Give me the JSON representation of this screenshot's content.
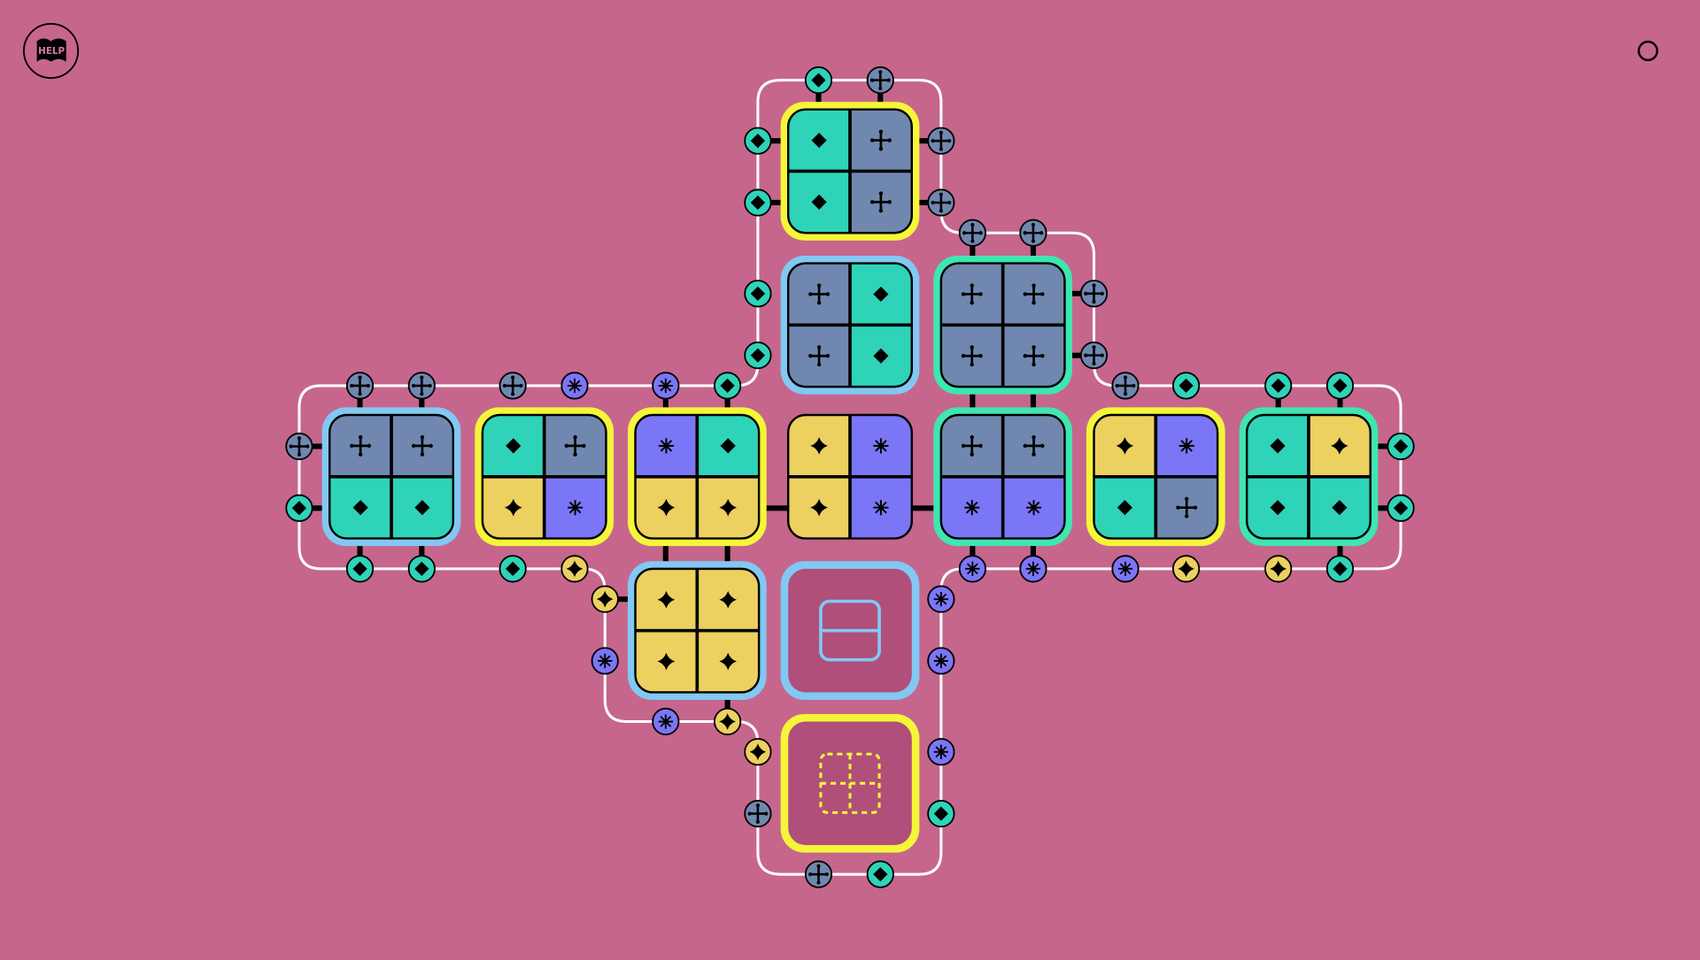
{
  "help_button": {
    "label": "HELP"
  },
  "menu_button": {
    "icon": "circle-icon"
  },
  "colors": {
    "background": "#c6668d",
    "teal": "#2fd3b8",
    "gray": "#7088b0",
    "yellow": "#ecd060",
    "purple": "#7b76f5",
    "ring_yellow": "#f5f53a",
    "ring_blue": "#82c8f2",
    "ring_green": "#3ee6b0",
    "empty_tile": "#b04f7a",
    "path": "#ffffff"
  },
  "symbols": {
    "t": "diamond",
    "g": "cross",
    "p": "asterisk",
    "y": "star"
  },
  "tiles": [
    {
      "row": 0,
      "col": 3,
      "ring": "ring_yellow",
      "cells": [
        "t",
        "g",
        "t",
        "g"
      ]
    },
    {
      "row": 1,
      "col": 3,
      "ring": "ring_blue",
      "cells": [
        "g",
        "t",
        "g",
        "t"
      ]
    },
    {
      "row": 1,
      "col": 4,
      "ring": "ring_green",
      "cells": [
        "g",
        "g",
        "g",
        "g"
      ]
    },
    {
      "row": 2,
      "col": 0,
      "ring": "ring_blue",
      "cells": [
        "g",
        "g",
        "t",
        "t"
      ]
    },
    {
      "row": 2,
      "col": 1,
      "ring": "ring_yellow",
      "cells": [
        "t",
        "g",
        "y",
        "p"
      ]
    },
    {
      "row": 2,
      "col": 2,
      "ring": "ring_yellow",
      "cells": [
        "p",
        "t",
        "y",
        "y"
      ]
    },
    {
      "row": 2,
      "col": 3,
      "ring": null,
      "cells": [
        "y",
        "p",
        "y",
        "p"
      ]
    },
    {
      "row": 2,
      "col": 4,
      "ring": "ring_green",
      "cells": [
        "g",
        "g",
        "p",
        "p"
      ]
    },
    {
      "row": 2,
      "col": 5,
      "ring": "ring_yellow",
      "cells": [
        "y",
        "p",
        "t",
        "g"
      ]
    },
    {
      "row": 2,
      "col": 6,
      "ring": "ring_green",
      "cells": [
        "t",
        "y",
        "t",
        "t"
      ]
    },
    {
      "row": 3,
      "col": 2,
      "ring": "ring_blue",
      "cells": [
        "y",
        "y",
        "y",
        "y"
      ]
    },
    {
      "row": 3,
      "col": 3,
      "ring": "ring_blue",
      "empty": "split-slot-icon"
    },
    {
      "row": 4,
      "col": 3,
      "ring": "ring_yellow",
      "empty": "quad-slot-icon"
    }
  ],
  "nodes": [
    "t",
    "g",
    "t",
    "g",
    "t",
    "g",
    "g",
    "g",
    "t",
    "g",
    "t",
    "g",
    "g",
    "g",
    "g",
    "p",
    "p",
    "t",
    "g",
    "t",
    "t",
    "t",
    "g",
    "t",
    "t",
    "t",
    "t",
    "t",
    "t",
    "y",
    "p",
    "p",
    "p",
    "y",
    "y",
    "t",
    "y",
    "p",
    "p",
    "p",
    "p",
    "y",
    "y",
    "p",
    "g",
    "t",
    "g",
    "t"
  ]
}
